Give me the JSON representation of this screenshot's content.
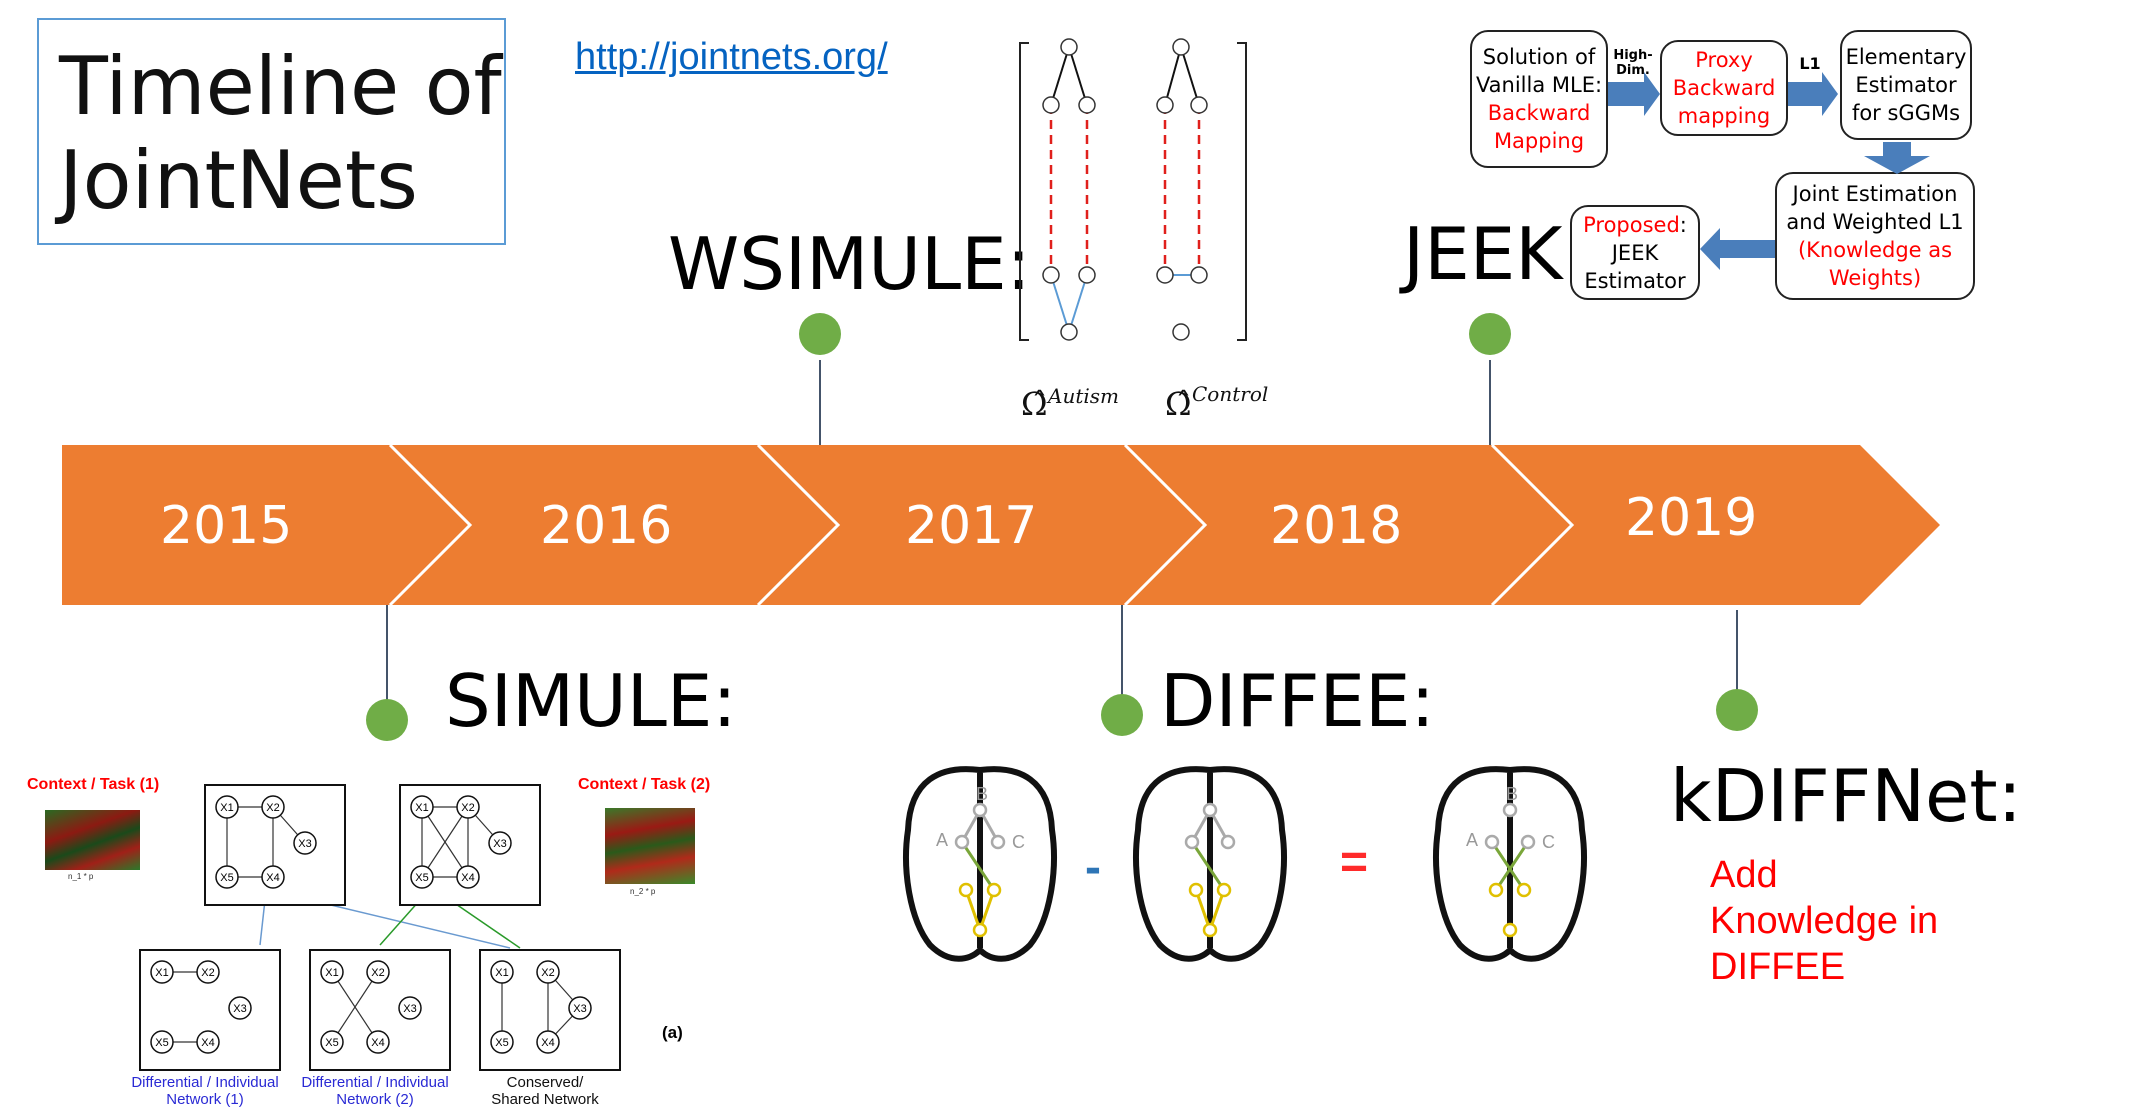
{
  "title": "Timeline of\nJointNets",
  "url": "http://jointnets.org/",
  "years": [
    "2015",
    "2016",
    "2017",
    "2018",
    "2019"
  ],
  "milestones": {
    "simule": "SIMULE:",
    "wsimule": "WSIMULE:",
    "diffee": "DIFFEE:",
    "jeek": "JEEK:",
    "kdiffnet": "kDIFFNet:",
    "kdiffnet_sub": "Add\nKnowledge in\nDIFFEE"
  },
  "wsimule_matrix": {
    "label_autism": "Autism",
    "label_control": "Control"
  },
  "jeek_flow": {
    "box1_black": "Solution of\nVanilla MLE:",
    "box1_red": "Backward\nMapping",
    "arrow1_label": "High-\nDim.",
    "box2_red": "Proxy\nBackward\nmapping",
    "arrow2_label": "L1",
    "box3": "Elementary\nEstimator\nfor sGGMs",
    "box4_black": "Joint Estimation\nand Weighted L1",
    "box4_red": "(Knowledge as\nWeights)",
    "box5_red": "Proposed",
    "box5_black": ":\nJEEK\nEstimator"
  },
  "simule_fig": {
    "context1": "Context / Task (1)",
    "context2": "Context / Task (2)",
    "heat1_caption": "n_1 * p",
    "heat2_caption": "n_2 * p",
    "panel_label": "(a)",
    "caption1": "Differential / Individual\nNetwork (1)",
    "caption2": "Differential / Individual\nNetwork (2)",
    "caption3": "Conserved/\nShared Network",
    "nodes": [
      "X1",
      "X2",
      "X3",
      "X4",
      "X5"
    ]
  },
  "diffee_fig": {
    "minus": "-",
    "equals": "=",
    "node_labels": [
      "A",
      "B",
      "C"
    ]
  },
  "colors": {
    "arrow": "#ed7d31",
    "dot": "#70ad47",
    "stem": "#44546a",
    "red": "#ff0000",
    "blue_arrow": "#4a7ebb",
    "link": "#0563c1"
  }
}
